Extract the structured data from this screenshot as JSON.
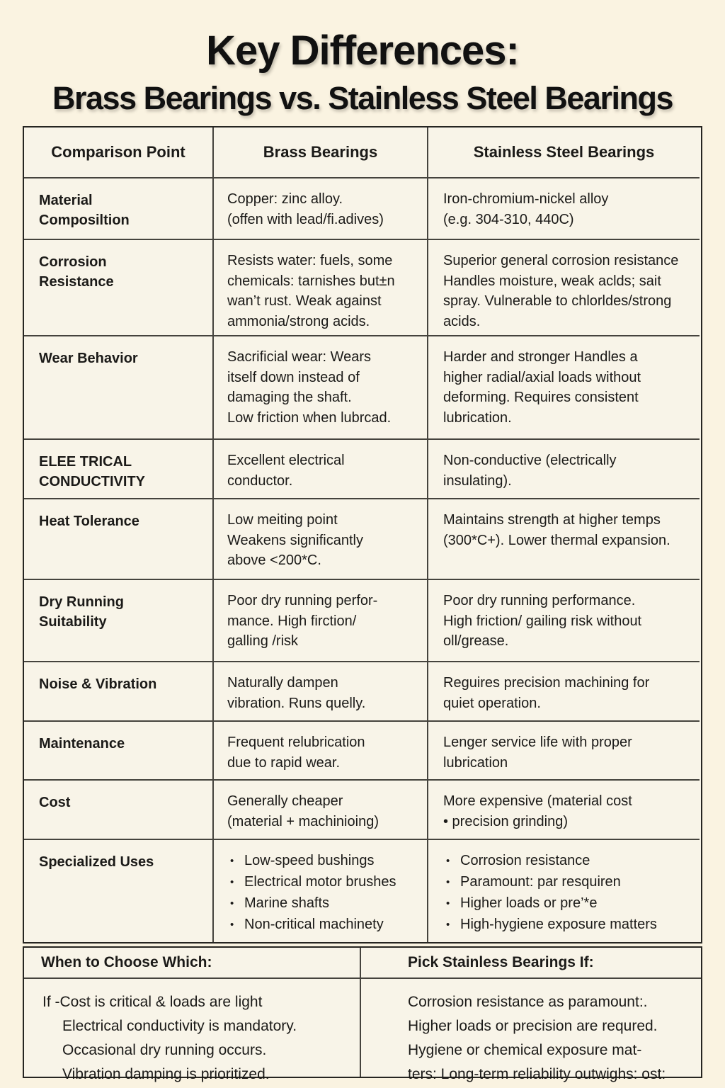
{
  "title": "Key Differences:",
  "subtitle": "Brass Bearings vs. Stainless Steel Bearings",
  "colors": {
    "page_background": "#faf3e1",
    "cell_background": "#f8f4e8",
    "header_tan": "#f5e8cb",
    "header_gray": "#e9e7e0",
    "border": "#45433d",
    "text": "#1b1a18"
  },
  "table": {
    "headers": [
      "Comparison Point",
      "Brass Bearings",
      "Stainless Steel Bearings"
    ],
    "rows": [
      {
        "label": "Material\nComposiltion",
        "brass": "Copper: zinc alloy.\n(offen with lead/fi.adives)",
        "steel": "Iron-chromium-nickel alloy\n(e.g. 304-310, 440C)"
      },
      {
        "label": "Corrosion\nResistance",
        "brass": "Resists water: fuels, some\nchemicals: tarnishes but±n\nwan’t rust. Weak against\nammonia/strong acids.",
        "steel": "Superior general corrosion resistance\nHandles moisture, weak aclds; sait\nspray. Vulnerable to chlorldes/strong\nacids."
      },
      {
        "label": "Wear Behavior",
        "brass": "Sacrificial wear: Wears\nitself down instead of\ndamaging the shaft.\nLow friction when lubrcad.",
        "steel": "Harder and stronger  Handles a\nhigher radial/axial loads without\ndeforming. Requires consistent\nlubrication."
      },
      {
        "label": "ELEE TRICAL\nCONDUCTIVITY",
        "brass": "Excellent electrical\nconductor.",
        "steel": "Non-conductive (electrically\ninsulating)."
      },
      {
        "label": "Heat Tolerance",
        "brass": "Low meiting point\nWeakens significantly\nabove <200*C.",
        "steel": "Maintains strength at higher temps\n(300*C+).  Lower thermal expansion."
      },
      {
        "label": "Dry Running\nSuitability",
        "brass": "Poor dry running perfor-\nmance. High firction/\ngalling /risk",
        "steel": "Poor dry running performance.\nHigh friction/ gailing risk without\noll/grease."
      },
      {
        "label": "Noise & Vibration",
        "brass": "Naturally dampen\nvibration. Runs quelly.",
        "steel": "Reguires precision machining for\nquiet operation."
      },
      {
        "label": "Maintenance",
        "brass": "Frequent relubrication\ndue to rapid wear.",
        "steel": "Lenger service life with proper\nlubrication"
      },
      {
        "label": "Cost",
        "brass": "Generally cheaper\n(material + machinioing)",
        "steel": "More expensive (material cost\n•  precision grinding)"
      },
      {
        "label": "Specialized Uses",
        "brass_bullets": [
          "Low-speed bushings",
          "Electrical motor brushes",
          "Marine shafts",
          "Non-critical machinety"
        ],
        "steel_bullets": [
          "Corrosion resistance",
          "Paramount: par resquiren",
          "Higher loads or pre’*e",
          "High-hygiene exposure matters"
        ]
      }
    ]
  },
  "footer": {
    "left_header": "When to Choose Which:",
    "right_header": "Pick Stainless Bearings If:",
    "left_lines": [
      "If -Cost is critical & loads are light",
      "Electrical conductivity is mandatory.",
      "Occasional dry running occurs.",
      "Vibration damping is prioritized."
    ],
    "right_lines": [
      "Corrosion resistance as paramount:.",
      "Higher loads or precision are requred.",
      "Hygiene or chemical exposure mat-",
      "ters: Long-term reliability outwighs: ost:"
    ]
  }
}
